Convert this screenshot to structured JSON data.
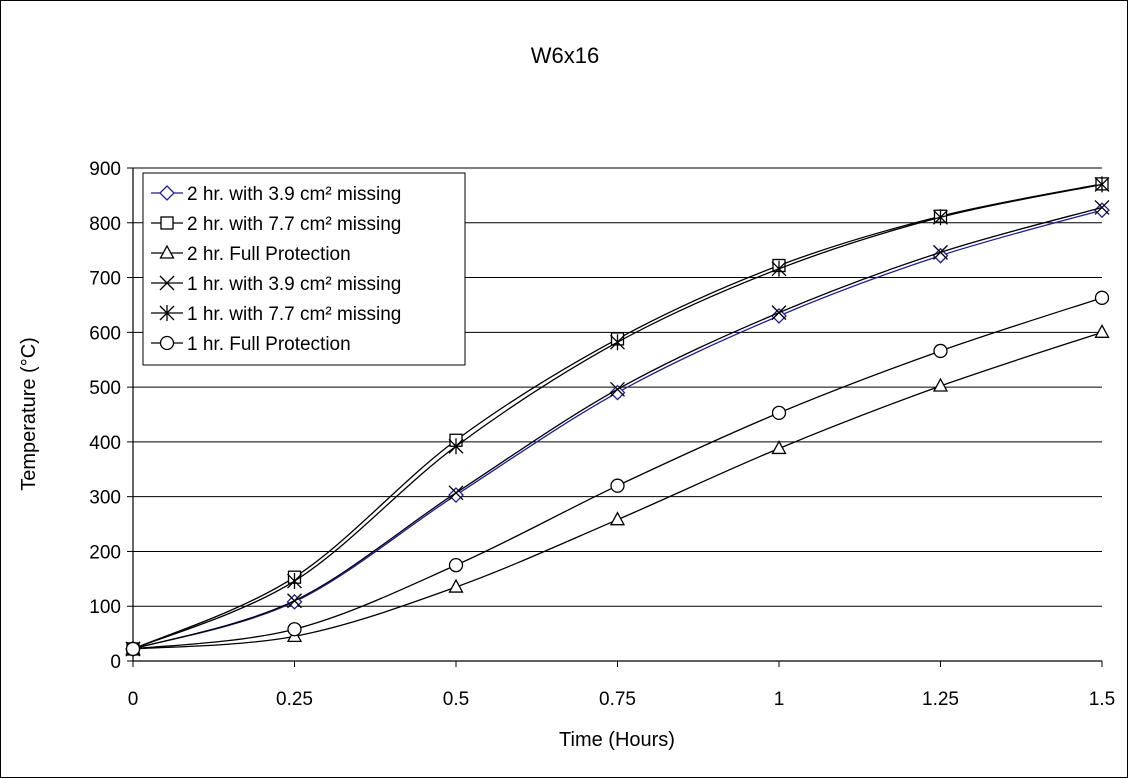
{
  "chart_data": {
    "type": "line",
    "title": "W6x16",
    "xlabel": "Time (Hours)",
    "ylabel": "Temperature (°C)",
    "x": [
      0,
      0.25,
      0.5,
      0.75,
      1,
      1.25,
      1.5
    ],
    "x_tick_labels": [
      "0",
      "0.25",
      "0.5",
      "0.75",
      "1",
      "1.25",
      "1.5"
    ],
    "xlim": [
      0,
      1.5
    ],
    "ylim": [
      0,
      900
    ],
    "y_ticks": [
      0,
      100,
      200,
      300,
      400,
      500,
      600,
      700,
      800,
      900
    ],
    "grid": "horizontal",
    "legend_position": "top-left",
    "series": [
      {
        "name": "2 hr. with 3.9 cm² missing",
        "marker": "diamond",
        "color": "#1f1f8f",
        "values": [
          22,
          108,
          303,
          490,
          630,
          740,
          823
        ]
      },
      {
        "name": "2 hr. with 7.7 cm² missing",
        "marker": "square",
        "color": "#000000",
        "values": [
          22,
          153,
          403,
          588,
          722,
          812,
          871
        ]
      },
      {
        "name": "2 hr. Full Protection",
        "marker": "triangle",
        "color": "#000000",
        "values": [
          22,
          45,
          135,
          258,
          388,
          502,
          600
        ]
      },
      {
        "name": "1 hr. with 3.9 cm² missing",
        "marker": "x",
        "color": "#000000",
        "values": [
          22,
          110,
          307,
          496,
          636,
          746,
          828
        ]
      },
      {
        "name": "1 hr. with 7.7 cm² missing",
        "marker": "asterisk",
        "color": "#000000",
        "values": [
          22,
          146,
          392,
          582,
          716,
          810,
          870
        ]
      },
      {
        "name": "1 hr. Full Protection",
        "marker": "circle",
        "color": "#000000",
        "values": [
          22,
          58,
          175,
          320,
          453,
          566,
          663
        ]
      }
    ]
  }
}
